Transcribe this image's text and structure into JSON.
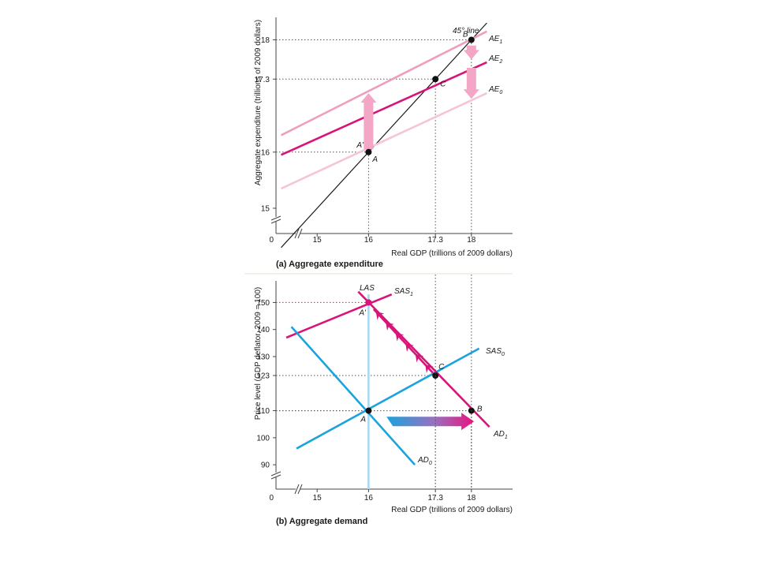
{
  "chart_data": [
    {
      "type": "line",
      "panel": "a",
      "caption": "(a) Aggregate expenditure",
      "xlabel": "Real GDP (trillions of 2009 dollars)",
      "ylabel": "Aggregate expenditure (trillions of 2009 dollars)",
      "xlim": [
        14.2,
        18.8
      ],
      "ylim": [
        14.55,
        18.4
      ],
      "x_axis_break": true,
      "y_axis_break": true,
      "origin_label": "0",
      "xticks": [
        "15",
        "16",
        "17.3",
        "18"
      ],
      "yticks": [
        "15",
        "16",
        "17.3",
        "18"
      ],
      "colors": {
        "ae1": "#ee9fbf",
        "ae2": "#d8147a",
        "ae0": "#f6c4d8",
        "line45": "#1a1a1a",
        "arrow": "#f3a6c6",
        "guide": "#555555"
      },
      "series": [
        {
          "key": "line45",
          "label": "45° line",
          "x": [
            14.3,
            18.3
          ],
          "y": [
            14.3,
            18.3
          ]
        },
        {
          "key": "ae1",
          "name": "AE",
          "sub": "1",
          "x": [
            14.3,
            18.3
          ],
          "y": [
            16.3,
            18.15
          ]
        },
        {
          "key": "ae2",
          "name": "AE",
          "sub": "2",
          "x": [
            14.3,
            18.3
          ],
          "y": [
            15.95,
            17.6
          ]
        },
        {
          "key": "ae0",
          "name": "AE",
          "sub": "0",
          "x": [
            14.3,
            18.3
          ],
          "y": [
            15.35,
            17.05
          ]
        }
      ],
      "points": [
        {
          "label": "A",
          "x": 16,
          "y": 16,
          "dx": 5,
          "dy": 12
        },
        {
          "label": "A'",
          "x": 16,
          "y": 16.05,
          "dx": -15,
          "dy": -2,
          "nodot": true
        },
        {
          "label": "B",
          "x": 18,
          "y": 18,
          "dx": -11,
          "dy": -4
        },
        {
          "label": "C",
          "x": 17.3,
          "y": 17.3,
          "dx": 6,
          "dy": 9
        }
      ],
      "arrows": [
        {
          "from": [
            16,
            16.05
          ],
          "to": [
            16,
            17.05
          ],
          "color": "arrow"
        },
        {
          "from": [
            18,
            17.9
          ],
          "to": [
            18,
            17.65
          ],
          "color": "arrow"
        },
        {
          "from": [
            18,
            17.5
          ],
          "to": [
            18,
            16.95
          ],
          "color": "arrow"
        }
      ]
    },
    {
      "type": "line",
      "panel": "b",
      "caption": "(b) Aggregate demand",
      "xlabel": "Real GDP (trillions of 2009 dollars)",
      "ylabel": "Price level (GDP deflator, 2009 = 100)",
      "xlim": [
        14.2,
        18.8
      ],
      "ylim": [
        81,
        158
      ],
      "x_axis_break": true,
      "y_axis_break": true,
      "origin_label": "0",
      "xticks": [
        "15",
        "16",
        "17.3",
        "18"
      ],
      "highlight_xtick": "16",
      "yticks": [
        "90",
        "100",
        "110",
        "123",
        "130",
        "140",
        "150"
      ],
      "highlight_ytick": "150",
      "colors": {
        "blue": "#1aa3dd",
        "las": "#a9d9f0",
        "magenta": "#d8147a",
        "guide": "#555555",
        "guide_magenta": "#d8147a"
      },
      "series": [
        {
          "key": "las",
          "name": "LAS",
          "sub": "",
          "x": [
            16,
            16
          ],
          "y": [
            81,
            153
          ]
        },
        {
          "key": "sas1",
          "name": "SAS",
          "sub": "1",
          "x": [
            14.4,
            16.45
          ],
          "y": [
            137,
            153
          ]
        },
        {
          "key": "sas0",
          "name": "SAS",
          "sub": "0",
          "x": [
            14.6,
            18.15
          ],
          "y": [
            96,
            133
          ]
        },
        {
          "key": "ad0",
          "name": "AD",
          "sub": "0",
          "x": [
            14.5,
            16.9
          ],
          "y": [
            141,
            90
          ]
        },
        {
          "key": "ad1",
          "name": "AD",
          "sub": "1",
          "x": [
            15.8,
            18.35
          ],
          "y": [
            154,
            104
          ]
        }
      ],
      "points": [
        {
          "label": "A",
          "x": 16,
          "y": 110,
          "dx": -10,
          "dy": 14
        },
        {
          "label": "A'",
          "x": 16,
          "y": 150,
          "dx": -12,
          "dy": 16,
          "magenta": true
        },
        {
          "label": "B",
          "x": 18,
          "y": 110,
          "dx": 7,
          "dy": 1
        },
        {
          "label": "C",
          "x": 17.3,
          "y": 123,
          "dx": 4,
          "dy": -8
        }
      ],
      "shift_arrow": {
        "from": [
          16.35,
          106
        ],
        "to": [
          18.05,
          106
        ]
      },
      "chevron_path": {
        "from": [
          17.25,
          124
        ],
        "to": [
          16.1,
          147.5
        ],
        "count": 6
      }
    }
  ]
}
